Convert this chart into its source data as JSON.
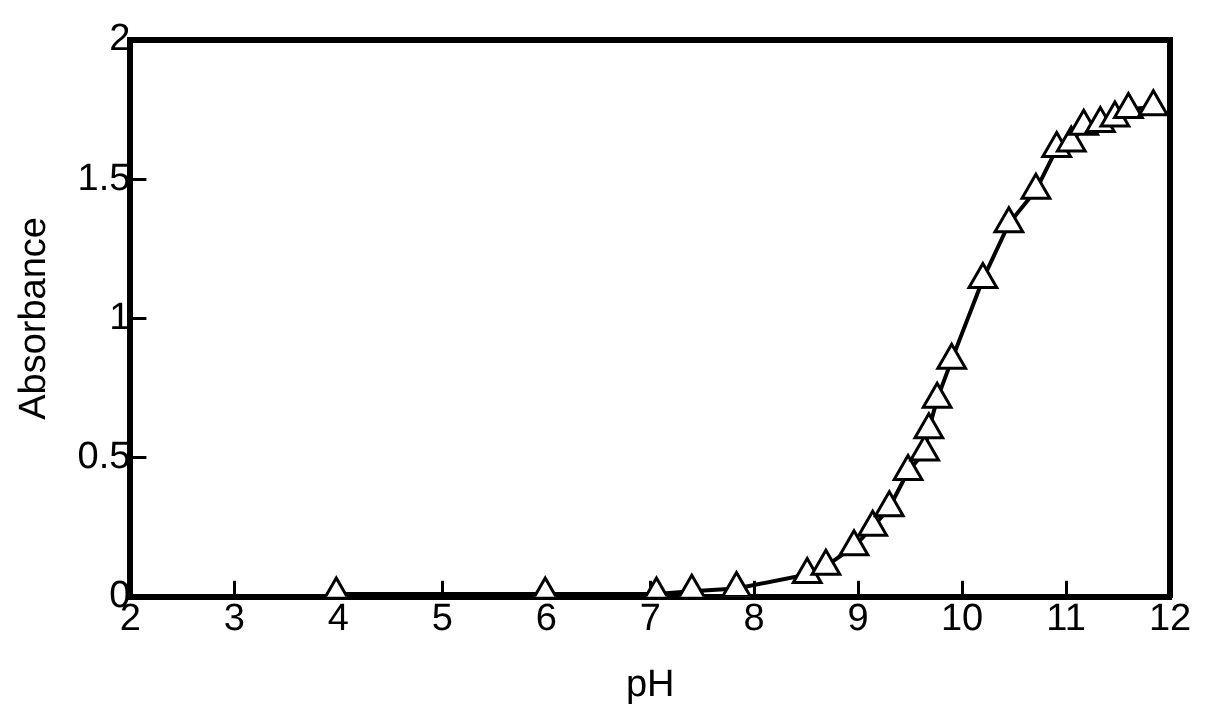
{
  "chart_data": {
    "type": "line",
    "xlabel": "pH",
    "ylabel": "Absorbance",
    "x": [
      3.98,
      5.99,
      7.06,
      7.4,
      7.83,
      8.51,
      8.69,
      8.96,
      9.14,
      9.3,
      9.48,
      9.64,
      9.68,
      9.76,
      9.9,
      10.2,
      10.45,
      10.71,
      10.91,
      11.05,
      11.17,
      11.33,
      11.47,
      11.6,
      11.84
    ],
    "series": [
      {
        "color": "#000000",
        "values": [
          0.01,
          0.01,
          0.01,
          0.02,
          0.03,
          0.08,
          0.11,
          0.18,
          0.25,
          0.32,
          0.45,
          0.52,
          0.6,
          0.71,
          0.85,
          1.14,
          1.34,
          1.46,
          1.61,
          1.63,
          1.69,
          1.7,
          1.72,
          1.75,
          1.76
        ]
      }
    ],
    "xlim": [
      2,
      12
    ],
    "xticks": [
      2,
      3,
      4,
      5,
      6,
      7,
      8,
      9,
      10,
      11,
      12
    ],
    "ylim": [
      0,
      2
    ],
    "yticks": [
      0,
      0.5,
      1,
      1.5,
      2
    ],
    "grid": false,
    "legend": false,
    "marker": "triangle",
    "line_style": "solid"
  }
}
